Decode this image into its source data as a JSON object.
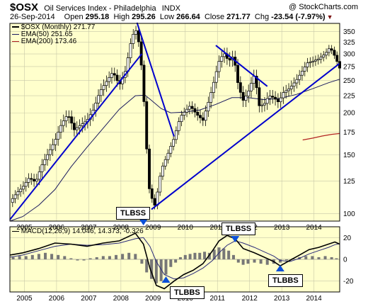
{
  "header": {
    "symbol": "$OSX",
    "name": "Oil Services Index - Philadelphia",
    "exchange": "INDX",
    "brand": "@ StockCharts.com",
    "date": "26-Sep-2014",
    "open_label": "Open",
    "open": "295.18",
    "high_label": "High",
    "high": "295.26",
    "low_label": "Low",
    "low": "266.64",
    "close_label": "Close",
    "close": "271.77",
    "chg_label": "Chg",
    "chg": "-23.54 (-7.97%)"
  },
  "legend": {
    "price": "$OSX (Monthly) 271.77",
    "ema50": "EMA(50) 251.65",
    "ema200": "EMA(200) 173.46",
    "macd": "MACD(12,26,9) 14.046, 14.373, -0.326"
  },
  "callouts": [
    "TLBSS",
    "TLBBS",
    "TLBSS",
    "TLBBS"
  ],
  "colors": {
    "bg": "#ffffcc",
    "ema50": "#1a1a5e",
    "ema200": "#b22222",
    "trend": "#0000cc",
    "hist": "#777777",
    "macd": "#000000",
    "signal": "#2a2a7a",
    "callout_arrow": "#0a4fd8"
  },
  "chart_data": [
    {
      "type": "candlestick",
      "title": "$OSX Oil Services Index - Philadelphia INDX (Monthly)",
      "scale": "log",
      "ylim": [
        95,
        370
      ],
      "y_ticks": [
        100,
        125,
        150,
        175,
        200,
        225,
        250,
        275,
        300,
        325,
        350
      ],
      "x_ticks": [
        "2005",
        "2006",
        "2007",
        "2008",
        "2009",
        "2010",
        "2011",
        "2012",
        "2013",
        "2014"
      ],
      "x_range": [
        2004.6,
        2014.85
      ],
      "close": [
        [
          2004.6,
          108
        ],
        [
          2004.8,
          115
        ],
        [
          2005.0,
          120
        ],
        [
          2005.2,
          128
        ],
        [
          2005.4,
          124
        ],
        [
          2005.6,
          140
        ],
        [
          2005.8,
          152
        ],
        [
          2006.0,
          165
        ],
        [
          2006.2,
          185
        ],
        [
          2006.4,
          198
        ],
        [
          2006.6,
          178
        ],
        [
          2006.8,
          184
        ],
        [
          2007.0,
          190
        ],
        [
          2007.2,
          205
        ],
        [
          2007.4,
          232
        ],
        [
          2007.6,
          248
        ],
        [
          2007.8,
          265
        ],
        [
          2008.0,
          242
        ],
        [
          2008.2,
          268
        ],
        [
          2008.4,
          340
        ],
        [
          2008.55,
          355
        ],
        [
          2008.7,
          268
        ],
        [
          2008.8,
          190
        ],
        [
          2008.9,
          122
        ],
        [
          2009.0,
          112
        ],
        [
          2009.1,
          106
        ],
        [
          2009.2,
          118
        ],
        [
          2009.3,
          135
        ],
        [
          2009.5,
          150
        ],
        [
          2009.7,
          168
        ],
        [
          2009.9,
          195
        ],
        [
          2010.0,
          200
        ],
        [
          2010.2,
          210
        ],
        [
          2010.4,
          198
        ],
        [
          2010.6,
          190
        ],
        [
          2010.8,
          220
        ],
        [
          2010.95,
          250
        ],
        [
          2011.1,
          285
        ],
        [
          2011.25,
          302
        ],
        [
          2011.4,
          285
        ],
        [
          2011.55,
          296
        ],
        [
          2011.7,
          240
        ],
        [
          2011.85,
          218
        ],
        [
          2012.0,
          230
        ],
        [
          2012.2,
          260
        ],
        [
          2012.35,
          210
        ],
        [
          2012.5,
          212
        ],
        [
          2012.65,
          225
        ],
        [
          2012.8,
          222
        ],
        [
          2012.95,
          215
        ],
        [
          2013.1,
          230
        ],
        [
          2013.3,
          237
        ],
        [
          2013.5,
          250
        ],
        [
          2013.7,
          268
        ],
        [
          2013.85,
          282
        ],
        [
          2014.0,
          285
        ],
        [
          2014.2,
          290
        ],
        [
          2014.4,
          300
        ],
        [
          2014.55,
          314
        ],
        [
          2014.7,
          295
        ],
        [
          2014.85,
          272
        ]
      ],
      "series": [
        {
          "name": "EMA(50)",
          "points": [
            [
              2004.6,
              95
            ],
            [
              2005.0,
              98
            ],
            [
              2005.5,
              106
            ],
            [
              2006.0,
              118
            ],
            [
              2006.5,
              138
            ],
            [
              2007.0,
              158
            ],
            [
              2007.5,
              180
            ],
            [
              2008.0,
              205
            ],
            [
              2008.5,
              225
            ],
            [
              2008.8,
              226
            ],
            [
              2009.0,
              218
            ],
            [
              2009.3,
              206
            ],
            [
              2009.6,
              200
            ],
            [
              2010.0,
              201
            ],
            [
              2010.5,
              204
            ],
            [
              2011.0,
              212
            ],
            [
              2011.5,
              222
            ],
            [
              2012.0,
              222
            ],
            [
              2012.5,
              219
            ],
            [
              2013.0,
              221
            ],
            [
              2013.5,
              227
            ],
            [
              2014.0,
              236
            ],
            [
              2014.5,
              246
            ],
            [
              2014.85,
              252
            ]
          ]
        },
        {
          "name": "EMA(200)",
          "points": [
            [
              2013.7,
              166
            ],
            [
              2014.0,
              168
            ],
            [
              2014.3,
              170.5
            ],
            [
              2014.6,
              172.5
            ],
            [
              2014.85,
              173.5
            ]
          ]
        }
      ]
    },
    {
      "type": "line",
      "title": "MACD(12,26,9)",
      "ylim": [
        -30,
        30
      ],
      "y_ticks": [
        20,
        0,
        -20
      ],
      "x_ticks": [
        "2005",
        "2006",
        "2007",
        "2008",
        "2009",
        "2010",
        "2011",
        "2012",
        "2013",
        "2014"
      ],
      "series": [
        {
          "name": "MACD",
          "points": [
            [
              2004.6,
              4
            ],
            [
              2005.0,
              6
            ],
            [
              2005.5,
              10
            ],
            [
              2006.0,
              15
            ],
            [
              2006.5,
              14
            ],
            [
              2007.0,
              12
            ],
            [
              2007.5,
              15
            ],
            [
              2008.0,
              17
            ],
            [
              2008.5,
              24
            ],
            [
              2008.75,
              14
            ],
            [
              2008.95,
              -8
            ],
            [
              2009.15,
              -24
            ],
            [
              2009.4,
              -27
            ],
            [
              2009.7,
              -20
            ],
            [
              2010.0,
              -14
            ],
            [
              2010.3,
              -10
            ],
            [
              2010.6,
              -4
            ],
            [
              2010.9,
              8
            ],
            [
              2011.1,
              17
            ],
            [
              2011.35,
              22
            ],
            [
              2011.6,
              19
            ],
            [
              2011.85,
              10
            ],
            [
              2012.2,
              6
            ],
            [
              2012.5,
              2
            ],
            [
              2012.8,
              -2
            ],
            [
              2013.0,
              -6
            ],
            [
              2013.3,
              -1
            ],
            [
              2013.6,
              4
            ],
            [
              2013.9,
              9
            ],
            [
              2014.2,
              11
            ],
            [
              2014.5,
              14
            ],
            [
              2014.7,
              16
            ],
            [
              2014.85,
              14
            ]
          ]
        },
        {
          "name": "Signal",
          "points": [
            [
              2004.6,
              2
            ],
            [
              2005.0,
              4
            ],
            [
              2005.5,
              8
            ],
            [
              2006.0,
              12
            ],
            [
              2006.5,
              14
            ],
            [
              2007.0,
              13
            ],
            [
              2007.5,
              13.5
            ],
            [
              2008.0,
              15
            ],
            [
              2008.5,
              19
            ],
            [
              2008.75,
              20
            ],
            [
              2008.95,
              12
            ],
            [
              2009.15,
              -2
            ],
            [
              2009.4,
              -14
            ],
            [
              2009.7,
              -18
            ],
            [
              2010.0,
              -17
            ],
            [
              2010.3,
              -13
            ],
            [
              2010.6,
              -8
            ],
            [
              2010.9,
              -1
            ],
            [
              2011.1,
              6
            ],
            [
              2011.35,
              13
            ],
            [
              2011.6,
              17
            ],
            [
              2011.85,
              15
            ],
            [
              2012.2,
              11
            ],
            [
              2012.5,
              7
            ],
            [
              2012.8,
              3
            ],
            [
              2013.0,
              -1
            ],
            [
              2013.3,
              -2
            ],
            [
              2013.6,
              1
            ],
            [
              2013.9,
              5
            ],
            [
              2014.2,
              8
            ],
            [
              2014.5,
              11
            ],
            [
              2014.7,
              13.5
            ],
            [
              2014.85,
              14.4
            ]
          ]
        }
      ],
      "histogram": [
        [
          2004.7,
          2
        ],
        [
          2004.9,
          3
        ],
        [
          2005.1,
          3
        ],
        [
          2005.3,
          4
        ],
        [
          2005.5,
          5
        ],
        [
          2005.7,
          6
        ],
        [
          2005.9,
          5
        ],
        [
          2006.1,
          4
        ],
        [
          2006.3,
          3
        ],
        [
          2006.5,
          1
        ],
        [
          2006.7,
          -1
        ],
        [
          2006.9,
          -1
        ],
        [
          2007.1,
          1
        ],
        [
          2007.3,
          2
        ],
        [
          2007.5,
          3
        ],
        [
          2007.7,
          3
        ],
        [
          2007.9,
          4
        ],
        [
          2008.1,
          5
        ],
        [
          2008.3,
          6
        ],
        [
          2008.5,
          5
        ],
        [
          2008.7,
          -4
        ],
        [
          2008.85,
          -12
        ],
        [
          2009.0,
          -18
        ],
        [
          2009.15,
          -22
        ],
        [
          2009.3,
          -20
        ],
        [
          2009.45,
          -14
        ],
        [
          2009.6,
          -7
        ],
        [
          2009.75,
          -3
        ],
        [
          2009.9,
          2
        ],
        [
          2010.05,
          4
        ],
        [
          2010.2,
          5
        ],
        [
          2010.35,
          6
        ],
        [
          2010.5,
          6
        ],
        [
          2010.65,
          7
        ],
        [
          2010.8,
          6
        ],
        [
          2010.95,
          9
        ],
        [
          2011.1,
          11
        ],
        [
          2011.25,
          10
        ],
        [
          2011.4,
          8
        ],
        [
          2011.55,
          4
        ],
        [
          2011.7,
          -3
        ],
        [
          2011.85,
          -5
        ],
        [
          2012.0,
          -4
        ],
        [
          2012.2,
          -3
        ],
        [
          2012.4,
          -4
        ],
        [
          2012.6,
          -5
        ],
        [
          2012.8,
          -4
        ],
        [
          2013.0,
          -3
        ],
        [
          2013.2,
          -1
        ],
        [
          2013.4,
          1
        ],
        [
          2013.6,
          2
        ],
        [
          2013.8,
          3
        ],
        [
          2014.0,
          3
        ],
        [
          2014.2,
          2
        ],
        [
          2014.4,
          3
        ],
        [
          2014.6,
          2
        ],
        [
          2014.75,
          1
        ]
      ]
    }
  ]
}
